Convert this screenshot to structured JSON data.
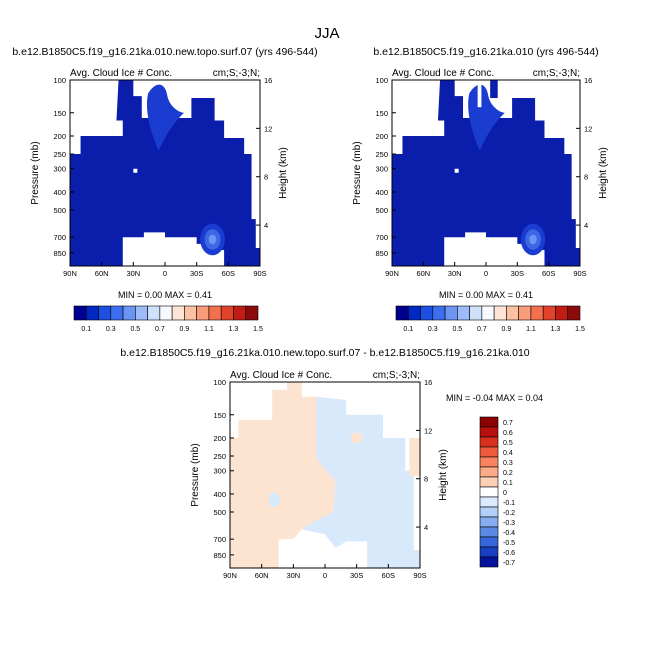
{
  "page_title": "JJA",
  "chart_data": [
    {
      "type": "heatmap",
      "id": "p1",
      "title": "b.e12.B1850C5.f19_g16.21ka.010.new.topo.surf.07 (yrs 496-544)",
      "left_label": "Avg. Cloud Ice # Conc.",
      "right_label": "cm;S;-3;N;",
      "ylabel": "Pressure (mb)",
      "ylabel_right": "Height (km)",
      "xticks": [
        "90N",
        "60N",
        "30N",
        "0",
        "30S",
        "60S",
        "90S"
      ],
      "yticks": [
        "100",
        "150",
        "200",
        "250",
        "300",
        "400",
        "500",
        "700",
        "850"
      ],
      "yticks_right": [
        "16",
        "12",
        "8",
        "4"
      ],
      "min_max": "MIN =  0.00  MAX =  0.41",
      "xlim": [
        90,
        -90
      ],
      "ylim": [
        100,
        1000
      ],
      "colorbar_labels": [
        "0.1",
        "0.3",
        "0.5",
        "0.7",
        "0.9",
        "1.1",
        "1.3",
        "1.5"
      ]
    },
    {
      "type": "heatmap",
      "id": "p2",
      "title": "b.e12.B1850C5.f19_g16.21ka.010 (yrs 496-544)",
      "left_label": "Avg. Cloud Ice # Conc.",
      "right_label": "cm;S;-3;N;",
      "ylabel": "Pressure (mb)",
      "ylabel_right": "Height (km)",
      "xticks": [
        "90N",
        "60N",
        "30N",
        "0",
        "30S",
        "60S",
        "90S"
      ],
      "yticks": [
        "100",
        "150",
        "200",
        "250",
        "300",
        "400",
        "500",
        "700",
        "850"
      ],
      "yticks_right": [
        "16",
        "12",
        "8",
        "4"
      ],
      "min_max": "MIN =  0.00  MAX =  0.41",
      "xlim": [
        90,
        -90
      ],
      "ylim": [
        100,
        1000
      ],
      "colorbar_labels": [
        "0.1",
        "0.3",
        "0.5",
        "0.7",
        "0.9",
        "1.1",
        "1.3",
        "1.5"
      ]
    },
    {
      "type": "heatmap",
      "id": "p3",
      "title": "b.e12.B1850C5.f19_g16.21ka.010.new.topo.surf.07 - b.e12.B1850C5.f19_g16.21ka.010",
      "left_label": "Avg. Cloud Ice # Conc.",
      "right_label": "cm;S;-3;N;",
      "ylabel": "Pressure (mb)",
      "ylabel_right": "Height (km)",
      "xticks": [
        "90N",
        "60N",
        "30N",
        "0",
        "30S",
        "60S",
        "90S"
      ],
      "yticks": [
        "100",
        "150",
        "200",
        "250",
        "300",
        "400",
        "500",
        "700",
        "850"
      ],
      "yticks_right": [
        "16",
        "12",
        "8",
        "4"
      ],
      "min_max": "MIN = -0.04  MAX =  0.04",
      "xlim": [
        90,
        -90
      ],
      "ylim": [
        100,
        1000
      ],
      "colorbar_labels": [
        "0.7",
        "0.6",
        "0.5",
        "0.4",
        "0.3",
        "0.2",
        "0.1",
        "0",
        "-0.1",
        "-0.2",
        "-0.3",
        "-0.4",
        "-0.5",
        "-0.6",
        "-0.7"
      ]
    }
  ],
  "colors": {
    "abs_scale": [
      "#00008f",
      "#0029c4",
      "#1d4fe0",
      "#3d6ef0",
      "#6b94f5",
      "#9dbbf8",
      "#cfe0fb",
      "#f6f9ff",
      "#fde4d4",
      "#fbc2a4",
      "#f89c79",
      "#f2704e",
      "#e2432a",
      "#c11d14",
      "#8b0a0a"
    ],
    "diff_scale": [
      "#8b0000",
      "#b80f0f",
      "#d7301f",
      "#ef5a3c",
      "#f8835e",
      "#fbab8a",
      "#fdd0b5",
      "#ffffff",
      "#dbeaff",
      "#b2cff8",
      "#86adf0",
      "#5b8ae6",
      "#3666d9",
      "#1a40c2",
      "#05129b"
    ],
    "field_dark": "#0a1dab",
    "field_mid": "#1a3cd0",
    "field_light": "#3e67e6",
    "diff_pos": "#fde4d0",
    "diff_neg": "#d8e9fb"
  }
}
